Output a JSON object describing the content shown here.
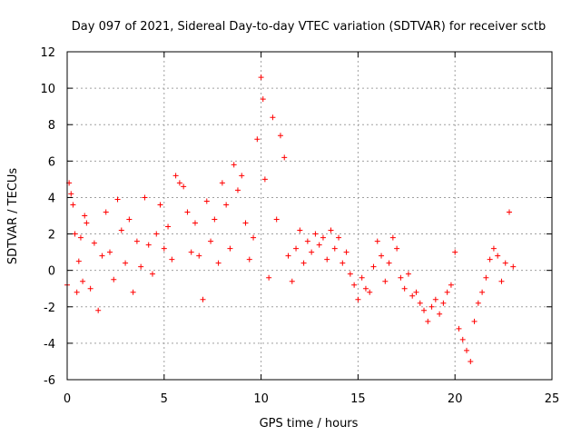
{
  "chart_data": {
    "type": "scatter",
    "title": "Day 097 of 2021, Sidereal Day-to-day VTEC variation (SDTVAR) for receiver sctb",
    "xlabel": "GPS time / hours",
    "ylabel": "SDTVAR / TECUs",
    "xlim": [
      0,
      25
    ],
    "ylim": [
      -6,
      12
    ],
    "xticks": [
      0,
      5,
      10,
      15,
      20,
      25
    ],
    "yticks": [
      -6,
      -4,
      -2,
      0,
      2,
      4,
      6,
      8,
      10,
      12
    ],
    "grid": true,
    "marker": "+",
    "color": "#ff0000",
    "series": [
      {
        "name": "SDTVAR",
        "x": [
          0.0,
          0.1,
          0.2,
          0.3,
          0.4,
          0.5,
          0.6,
          0.7,
          0.8,
          0.9,
          1.0,
          1.2,
          1.4,
          1.6,
          1.8,
          2.0,
          2.2,
          2.4,
          2.6,
          2.8,
          3.0,
          3.2,
          3.4,
          3.6,
          3.8,
          4.0,
          4.2,
          4.4,
          4.6,
          4.8,
          5.0,
          5.2,
          5.4,
          5.6,
          5.8,
          6.0,
          6.2,
          6.4,
          6.6,
          6.8,
          7.0,
          7.2,
          7.4,
          7.6,
          7.8,
          8.0,
          8.2,
          8.4,
          8.6,
          8.8,
          9.0,
          9.2,
          9.4,
          9.6,
          9.8,
          10.0,
          10.1,
          10.2,
          10.4,
          10.6,
          10.8,
          11.0,
          11.2,
          11.4,
          11.6,
          11.8,
          12.0,
          12.2,
          12.4,
          12.6,
          12.8,
          13.0,
          13.2,
          13.4,
          13.6,
          13.8,
          14.0,
          14.2,
          14.4,
          14.6,
          14.8,
          15.0,
          15.2,
          15.4,
          15.6,
          15.8,
          16.0,
          16.2,
          16.4,
          16.6,
          16.8,
          17.0,
          17.2,
          17.4,
          17.6,
          17.8,
          18.0,
          18.2,
          18.4,
          18.6,
          18.8,
          19.0,
          19.2,
          19.4,
          19.6,
          19.8,
          20.0,
          20.2,
          20.4,
          20.6,
          20.8,
          21.0,
          21.2,
          21.4,
          21.6,
          21.8,
          22.0,
          22.2,
          22.4,
          22.6,
          22.8,
          23.0
        ],
        "y": [
          -0.8,
          4.8,
          4.2,
          3.6,
          2.0,
          -1.2,
          0.5,
          1.8,
          -0.6,
          3.0,
          2.6,
          -1.0,
          1.5,
          -2.2,
          0.8,
          3.2,
          1.0,
          -0.5,
          3.9,
          2.2,
          0.4,
          2.8,
          -1.2,
          1.6,
          0.2,
          4.0,
          1.4,
          -0.2,
          2.0,
          3.6,
          1.2,
          2.4,
          0.6,
          5.2,
          4.8,
          4.6,
          3.2,
          1.0,
          2.6,
          0.8,
          -1.6,
          3.8,
          1.6,
          2.8,
          0.4,
          4.8,
          3.6,
          1.2,
          5.8,
          4.4,
          5.2,
          2.6,
          0.6,
          1.8,
          7.2,
          10.6,
          9.4,
          5.0,
          -0.4,
          8.4,
          2.8,
          7.4,
          6.2,
          0.8,
          -0.6,
          1.2,
          2.2,
          0.4,
          1.6,
          1.0,
          2.0,
          1.4,
          1.8,
          0.6,
          2.2,
          1.2,
          1.8,
          0.4,
          1.0,
          -0.2,
          -0.8,
          -1.6,
          -0.4,
          -1.0,
          -1.2,
          0.2,
          1.6,
          0.8,
          -0.6,
          0.4,
          1.8,
          1.2,
          -0.4,
          -1.0,
          -0.2,
          -1.4,
          -1.2,
          -1.8,
          -2.2,
          -2.8,
          -2.0,
          -1.6,
          -2.4,
          -1.8,
          -1.2,
          -0.8,
          1.0,
          -3.2,
          -3.8,
          -4.4,
          -5.0,
          -2.8,
          -1.8,
          -1.2,
          -0.4,
          0.6,
          1.2,
          0.8,
          -0.6,
          0.4,
          3.2,
          0.2
        ]
      }
    ]
  }
}
